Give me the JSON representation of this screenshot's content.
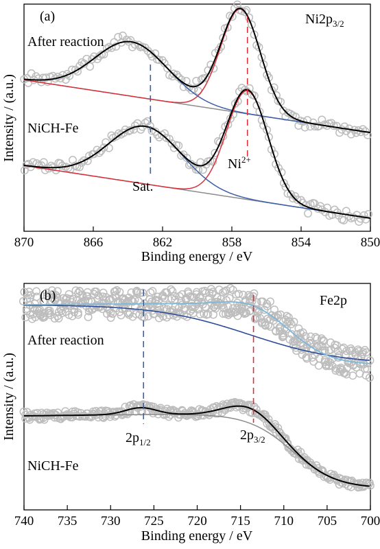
{
  "chart_data": [
    {
      "type": "line",
      "panel_label": "(a)",
      "region_label": "Ni2p",
      "region_sub": "3/2",
      "xlabel": "Binding energy / eV",
      "ylabel": "Intensity / (a.u.)",
      "xlim": [
        870,
        850
      ],
      "xticks": [
        870,
        866,
        862,
        858,
        854,
        850
      ],
      "colors": {
        "raw": "#bdbdbd",
        "fit": "#000000",
        "ni": "#d9303a",
        "sat": "#3a5ea8",
        "bg": "#8c8c8c"
      },
      "peak_labels": [
        {
          "text": "Ni",
          "sup": "2+",
          "position_eV": 857.1,
          "color": "#d9303a"
        },
        {
          "text": "Sat.",
          "sup": "",
          "position_eV": 862.7,
          "color": "#3a5ea8"
        }
      ],
      "samples": [
        {
          "name": "After reaction",
          "offset": 0.52,
          "background": {
            "start": 0.32,
            "end": 0.0
          },
          "components": [
            {
              "label": "Ni2+",
              "center": 857.5,
              "amplitude": 0.63,
              "sigma": 1.15,
              "color": "#d9303a"
            },
            {
              "label": "Sat.",
              "center": 863.8,
              "amplitude": 0.33,
              "sigma": 2.1,
              "color": "#3a5ea8"
            }
          ]
        },
        {
          "name": "NiCH-Fe",
          "offset": 0.0,
          "background": {
            "start": 0.32,
            "end": 0.0
          },
          "components": [
            {
              "label": "Ni2+",
              "center": 857.1,
              "amplitude": 0.66,
              "sigma": 1.2,
              "color": "#d9303a"
            },
            {
              "label": "Sat.",
              "center": 863.0,
              "amplitude": 0.35,
              "sigma": 2.1,
              "color": "#3a5ea8"
            }
          ]
        }
      ]
    },
    {
      "type": "line",
      "panel_label": "(b)",
      "region_label": "Fe2p",
      "xlabel": "Binding energy / eV",
      "ylabel": "Intensity / (a.u.)",
      "xlim": [
        740,
        700
      ],
      "xticks": [
        740,
        735,
        730,
        725,
        720,
        715,
        710,
        705,
        700
      ],
      "peak_labels": [
        {
          "text": "2p",
          "sub": "1/2",
          "position_eV": 726.2,
          "color": "#3a5ea8"
        },
        {
          "text": "2p",
          "sub": "3/2",
          "position_eV": 713.5,
          "color": "#d9303a"
        }
      ],
      "samples": [
        {
          "name": "After reaction",
          "offset": 0.56,
          "noise": "high"
        },
        {
          "name": "NiCH-Fe",
          "offset": 0.0,
          "noise": "low"
        }
      ]
    }
  ]
}
